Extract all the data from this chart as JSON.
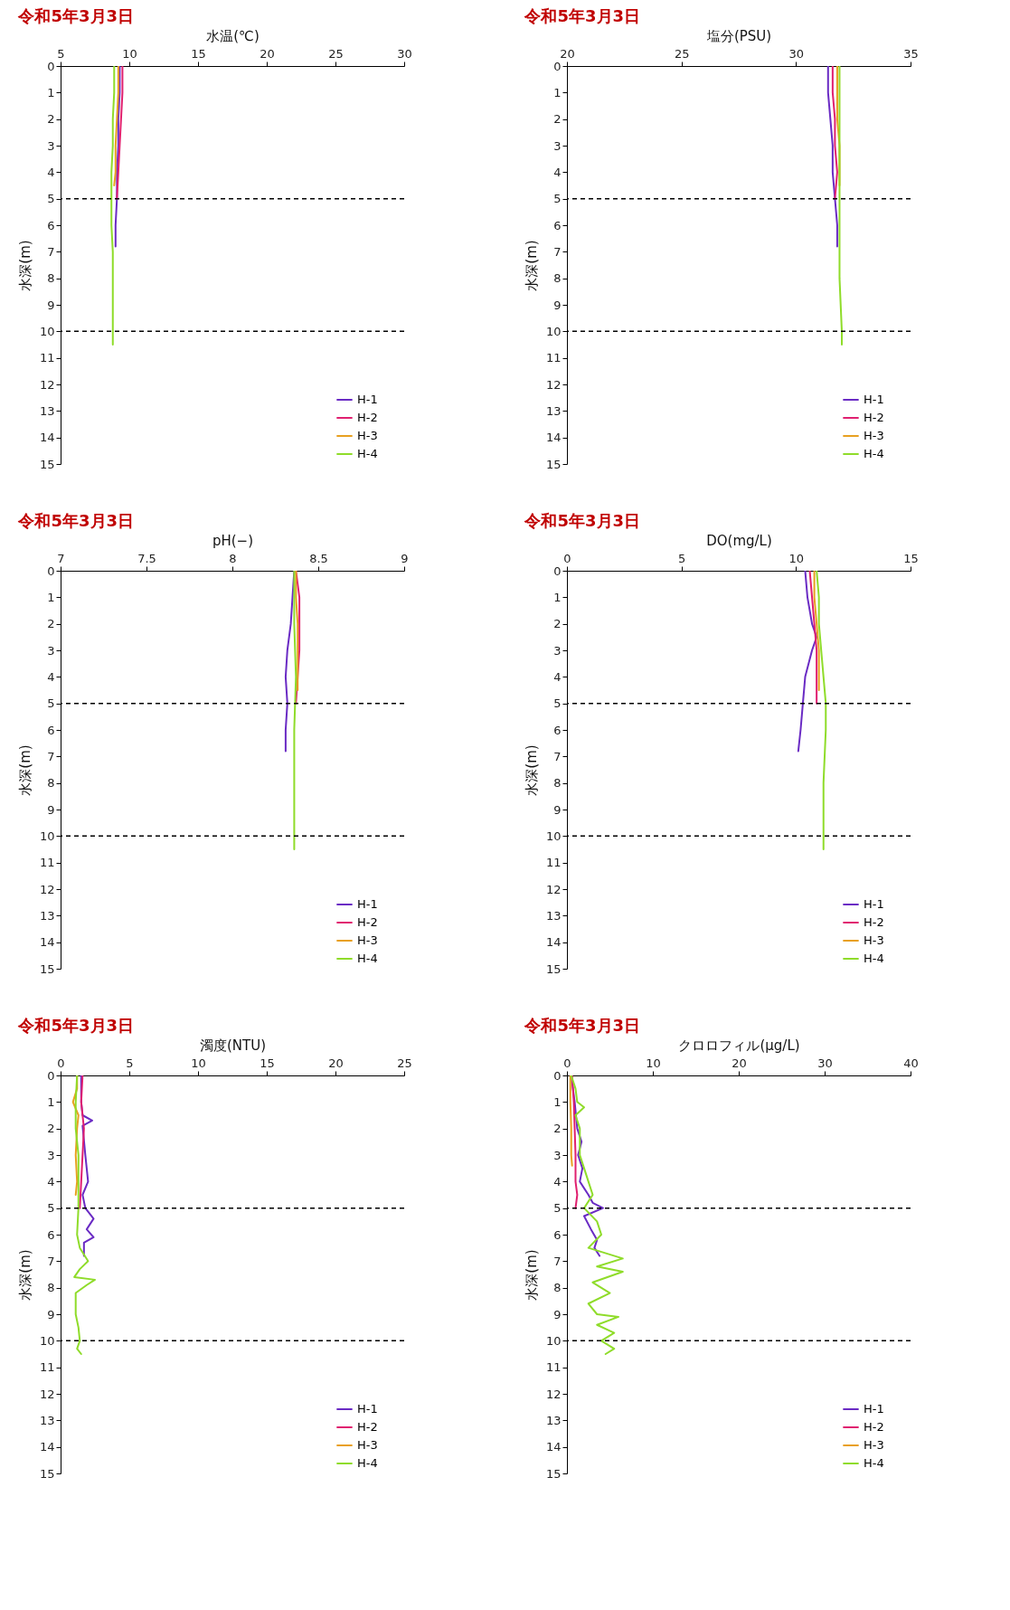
{
  "chart_data": [
    {
      "type": "line",
      "title": "令和5年3月3日",
      "xlabel": "水温(℃)",
      "ylabel": "水深(m)",
      "xlim": [
        5,
        30
      ],
      "xticks": [
        5,
        10,
        15,
        20,
        25,
        30
      ],
      "ylim": [
        15,
        0
      ],
      "yticks": [
        0,
        1,
        2,
        3,
        4,
        5,
        6,
        7,
        8,
        9,
        10,
        11,
        12,
        13,
        14,
        15
      ],
      "legend": "bottom right",
      "ref_lines": [
        {
          "axis": "y",
          "value": 5,
          "line_style": "dashed",
          "color": "#000000"
        },
        {
          "axis": "y",
          "value": 10,
          "line_style": "dashed",
          "color": "#000000"
        }
      ],
      "series": [
        {
          "name": "H-1",
          "color": "#6a2bc4",
          "x": [
            9.3,
            9.3,
            9.2,
            9.2,
            9.1,
            9.1,
            9.0,
            9.0
          ],
          "values": [
            0,
            1,
            2,
            3,
            4,
            5,
            6,
            6.8
          ]
        },
        {
          "name": "H-2",
          "color": "#e02070",
          "x": [
            9.5,
            9.5,
            9.4,
            9.3,
            9.2,
            9.1
          ],
          "values": [
            0,
            1,
            2,
            3,
            4,
            5
          ]
        },
        {
          "name": "H-3",
          "color": "#e8a020",
          "x": [
            9.2,
            9.2,
            9.1,
            9.0,
            9.0,
            8.9
          ],
          "values": [
            0,
            1,
            2,
            3,
            4,
            4.5
          ]
        },
        {
          "name": "H-4",
          "color": "#8fdc2a",
          "x": [
            8.9,
            8.9,
            8.8,
            8.8,
            8.7,
            8.7,
            8.7,
            8.8,
            8.8,
            8.8,
            8.8,
            8.8
          ],
          "values": [
            0,
            1,
            2,
            3,
            4,
            5,
            6,
            7,
            8,
            9,
            10,
            10.5
          ]
        }
      ]
    },
    {
      "type": "line",
      "title": "令和5年3月3日",
      "xlabel": "塩分(PSU)",
      "ylabel": "水深(m)",
      "xlim": [
        20,
        35
      ],
      "xticks": [
        20,
        25,
        30,
        35
      ],
      "ylim": [
        15,
        0
      ],
      "yticks": [
        0,
        1,
        2,
        3,
        4,
        5,
        6,
        7,
        8,
        9,
        10,
        11,
        12,
        13,
        14,
        15
      ],
      "legend": "bottom right",
      "ref_lines": [
        {
          "axis": "y",
          "value": 5,
          "line_style": "dashed",
          "color": "#000000"
        },
        {
          "axis": "y",
          "value": 10,
          "line_style": "dashed",
          "color": "#000000"
        }
      ],
      "series": [
        {
          "name": "H-1",
          "color": "#6a2bc4",
          "x": [
            31.4,
            31.4,
            31.5,
            31.6,
            31.6,
            31.7,
            31.8,
            31.8
          ],
          "values": [
            0,
            1,
            2,
            3,
            4,
            5,
            6,
            6.8
          ]
        },
        {
          "name": "H-2",
          "color": "#e02070",
          "x": [
            31.6,
            31.6,
            31.7,
            31.7,
            31.8,
            31.7
          ],
          "values": [
            0,
            1,
            2,
            3,
            4,
            5
          ]
        },
        {
          "name": "H-3",
          "color": "#e8a020",
          "x": [
            31.8,
            31.8,
            31.8,
            31.9,
            31.9,
            31.9
          ],
          "values": [
            0,
            1,
            2,
            3,
            4,
            4.5
          ]
        },
        {
          "name": "H-4",
          "color": "#8fdc2a",
          "x": [
            31.9,
            31.9,
            31.9,
            31.9,
            31.9,
            32.0,
            32.0
          ],
          "values": [
            0,
            2,
            4,
            6,
            8,
            10,
            10.5
          ]
        }
      ]
    },
    {
      "type": "line",
      "title": "令和5年3月3日",
      "xlabel": "pH(−)",
      "ylabel": "水深(m)",
      "xlim": [
        7,
        9
      ],
      "xticks": [
        7,
        7.5,
        8,
        8.5,
        9
      ],
      "ylim": [
        15,
        0
      ],
      "yticks": [
        0,
        1,
        2,
        3,
        4,
        5,
        6,
        7,
        8,
        9,
        10,
        11,
        12,
        13,
        14,
        15
      ],
      "legend": "bottom right",
      "ref_lines": [
        {
          "axis": "y",
          "value": 5,
          "line_style": "dashed",
          "color": "#000000"
        },
        {
          "axis": "y",
          "value": 10,
          "line_style": "dashed",
          "color": "#000000"
        }
      ],
      "series": [
        {
          "name": "H-1",
          "color": "#6a2bc4",
          "x": [
            8.36,
            8.35,
            8.34,
            8.32,
            8.31,
            8.32,
            8.31,
            8.31
          ],
          "values": [
            0,
            1,
            2,
            3,
            4,
            5,
            6,
            6.8
          ]
        },
        {
          "name": "H-2",
          "color": "#e02070",
          "x": [
            8.37,
            8.39,
            8.39,
            8.39,
            8.38,
            8.37
          ],
          "values": [
            0,
            1,
            2,
            3,
            4,
            5
          ]
        },
        {
          "name": "H-3",
          "color": "#e8a020",
          "x": [
            8.37,
            8.37,
            8.38,
            8.38,
            8.38,
            8.38
          ],
          "values": [
            0,
            1,
            2,
            3,
            4,
            4.5
          ]
        },
        {
          "name": "H-4",
          "color": "#8fdc2a",
          "x": [
            8.36,
            8.36,
            8.37,
            8.36,
            8.36,
            8.36,
            8.36
          ],
          "values": [
            0,
            2,
            4,
            6,
            8,
            10,
            10.5
          ]
        }
      ]
    },
    {
      "type": "line",
      "title": "令和5年3月3日",
      "xlabel": "DO(mg/L)",
      "ylabel": "水深(m)",
      "xlim": [
        0,
        15
      ],
      "xticks": [
        0,
        5,
        10,
        15
      ],
      "ylim": [
        15,
        0
      ],
      "yticks": [
        0,
        1,
        2,
        3,
        4,
        5,
        6,
        7,
        8,
        9,
        10,
        11,
        12,
        13,
        14,
        15
      ],
      "legend": "bottom right",
      "ref_lines": [
        {
          "axis": "y",
          "value": 5,
          "line_style": "dashed",
          "color": "#000000"
        },
        {
          "axis": "y",
          "value": 10,
          "line_style": "dashed",
          "color": "#000000"
        }
      ],
      "series": [
        {
          "name": "H-1",
          "color": "#6a2bc4",
          "x": [
            10.4,
            10.5,
            10.7,
            10.9,
            10.7,
            10.4,
            10.3,
            10.2,
            10.1
          ],
          "values": [
            0,
            1,
            2,
            2.5,
            3,
            4,
            5,
            6,
            6.8
          ]
        },
        {
          "name": "H-2",
          "color": "#e02070",
          "x": [
            10.6,
            10.7,
            10.8,
            10.9,
            10.9,
            10.9
          ],
          "values": [
            0,
            1,
            2,
            3,
            4,
            5
          ]
        },
        {
          "name": "H-3",
          "color": "#e8a020",
          "x": [
            10.8,
            10.8,
            10.9,
            11.0,
            11.0,
            11.0
          ],
          "values": [
            0,
            1,
            2,
            3,
            4,
            4.5
          ]
        },
        {
          "name": "H-4",
          "color": "#8fdc2a",
          "x": [
            10.9,
            11.0,
            11.0,
            11.1,
            11.2,
            11.3,
            11.3,
            11.2,
            11.2,
            11.2
          ],
          "values": [
            0,
            1,
            2,
            3,
            4,
            5,
            6,
            8,
            10,
            10.5
          ]
        }
      ]
    },
    {
      "type": "line",
      "title": "令和5年3月3日",
      "xlabel": "濁度(NTU)",
      "ylabel": "水深(m)",
      "xlim": [
        0,
        25
      ],
      "xticks": [
        0,
        5,
        10,
        15,
        20,
        25
      ],
      "ylim": [
        15,
        0
      ],
      "yticks": [
        0,
        1,
        2,
        3,
        4,
        5,
        6,
        7,
        8,
        9,
        10,
        11,
        12,
        13,
        14,
        15
      ],
      "legend": "bottom right",
      "ref_lines": [
        {
          "axis": "y",
          "value": 5,
          "line_style": "dashed",
          "color": "#000000"
        },
        {
          "axis": "y",
          "value": 10,
          "line_style": "dashed",
          "color": "#000000"
        }
      ],
      "series": [
        {
          "name": "H-1",
          "color": "#6a2bc4",
          "x": [
            1.5,
            1.5,
            1.6,
            2.3,
            1.6,
            1.8,
            2.0,
            1.6,
            1.8,
            2.4,
            1.9,
            2.4,
            1.7,
            1.7
          ],
          "values": [
            0,
            1,
            1.5,
            1.7,
            1.9,
            3,
            4,
            4.5,
            5,
            5.4,
            5.8,
            6.1,
            6.3,
            6.8
          ]
        },
        {
          "name": "H-2",
          "color": "#e02070",
          "x": [
            1.6,
            1.5,
            1.7,
            1.6,
            1.5,
            1.4
          ],
          "values": [
            0,
            1,
            2,
            3,
            4,
            5
          ]
        },
        {
          "name": "H-3",
          "color": "#e8a020",
          "x": [
            1.2,
            1.2,
            0.9,
            1.3,
            1.2,
            1.1,
            1.2,
            1.1
          ],
          "values": [
            0,
            0.5,
            1,
            1.5,
            2,
            3,
            4,
            4.5
          ]
        },
        {
          "name": "H-4",
          "color": "#8fdc2a",
          "x": [
            1.2,
            1.1,
            1.1,
            1.3,
            1.3,
            1.3,
            1.2,
            1.4,
            2.0,
            1.4,
            1.0,
            2.5,
            1.9,
            1.1,
            1.1,
            1.3,
            1.4,
            1.2,
            1.5
          ],
          "values": [
            0,
            1,
            2,
            3,
            4,
            5,
            6,
            6.5,
            7,
            7.3,
            7.6,
            7.7,
            7.9,
            8.2,
            9,
            9.5,
            10,
            10.3,
            10.5
          ]
        }
      ]
    },
    {
      "type": "line",
      "title": "令和5年3月3日",
      "xlabel": "クロロフィル(μg/L)",
      "ylabel": "水深(m)",
      "xlim": [
        0,
        40
      ],
      "xticks": [
        0,
        10,
        20,
        30,
        40
      ],
      "ylim": [
        15,
        0
      ],
      "yticks": [
        0,
        1,
        2,
        3,
        4,
        5,
        6,
        7,
        8,
        9,
        10,
        11,
        12,
        13,
        14,
        15
      ],
      "legend": "bottom right",
      "ref_lines": [
        {
          "axis": "y",
          "value": 5,
          "line_style": "dashed",
          "color": "#000000"
        },
        {
          "axis": "y",
          "value": 10,
          "line_style": "dashed",
          "color": "#000000"
        }
      ],
      "series": [
        {
          "name": "H-1",
          "color": "#6a2bc4",
          "x": [
            0.5,
            0.9,
            1.2,
            1.7,
            1.3,
            1.8,
            1.5,
            2.5,
            3.0,
            4.2,
            2.0,
            2.8,
            3.5,
            3.2,
            3.8
          ],
          "values": [
            0,
            1,
            2,
            2.5,
            3,
            3.5,
            4,
            4.5,
            4.8,
            5,
            5.3,
            5.8,
            6.2,
            6.5,
            6.8
          ]
        },
        {
          "name": "H-2",
          "color": "#e02070",
          "x": [
            0.6,
            0.8,
            0.9,
            1.0,
            1.0,
            1.2,
            1.0
          ],
          "values": [
            0,
            1,
            2,
            3,
            4,
            4.5,
            5
          ]
        },
        {
          "name": "H-3",
          "color": "#e8a020",
          "x": [
            0.4,
            0.4,
            0.5,
            0.5,
            0.6
          ],
          "values": [
            0,
            1,
            2,
            3,
            3.4
          ]
        },
        {
          "name": "H-4",
          "color": "#8fdc2a",
          "x": [
            0.5,
            1.0,
            1.2,
            2.0,
            1.0,
            1.5,
            1.5,
            2.0,
            2.5,
            3.0,
            2.0,
            3.5,
            4.0,
            2.5,
            6.5,
            3.5,
            6.5,
            3.0,
            5.0,
            2.5,
            3.5,
            6.0,
            3.5,
            5.5,
            4.0,
            5.5,
            4.5
          ],
          "values": [
            0,
            0.5,
            1,
            1.2,
            1.5,
            2,
            3,
            3.5,
            4,
            4.5,
            5,
            5.5,
            6,
            6.5,
            6.9,
            7.2,
            7.4,
            7.8,
            8.2,
            8.6,
            9,
            9.1,
            9.4,
            9.7,
            10,
            10.3,
            10.5
          ]
        }
      ]
    }
  ]
}
